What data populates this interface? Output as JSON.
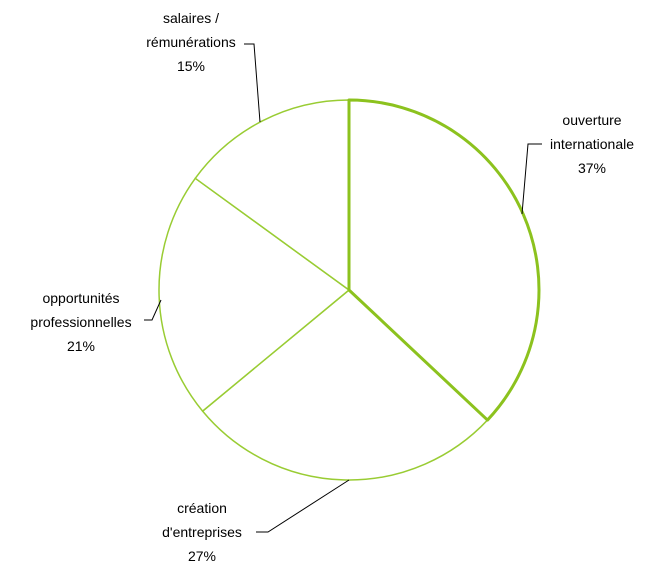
{
  "chart_data": {
    "type": "pie",
    "title": "",
    "slices": [
      {
        "label_lines": [
          "ouverture",
          "internationale"
        ],
        "value": 37,
        "value_label": "37%",
        "emphasized": true
      },
      {
        "label_lines": [
          "création",
          "d'entreprises"
        ],
        "value": 27,
        "value_label": "27%",
        "emphasized": false
      },
      {
        "label_lines": [
          "opportunités",
          "professionnelles"
        ],
        "value": 21,
        "value_label": "21%",
        "emphasized": false
      },
      {
        "label_lines": [
          "salaires /",
          "rémunérations"
        ],
        "value": 15,
        "value_label": "15%",
        "emphasized": false
      }
    ],
    "colors": {
      "fill": "#ffffff",
      "stroke": "#99cc33",
      "stroke_emphasis": "#8cc21e",
      "leader": "#000000"
    }
  }
}
